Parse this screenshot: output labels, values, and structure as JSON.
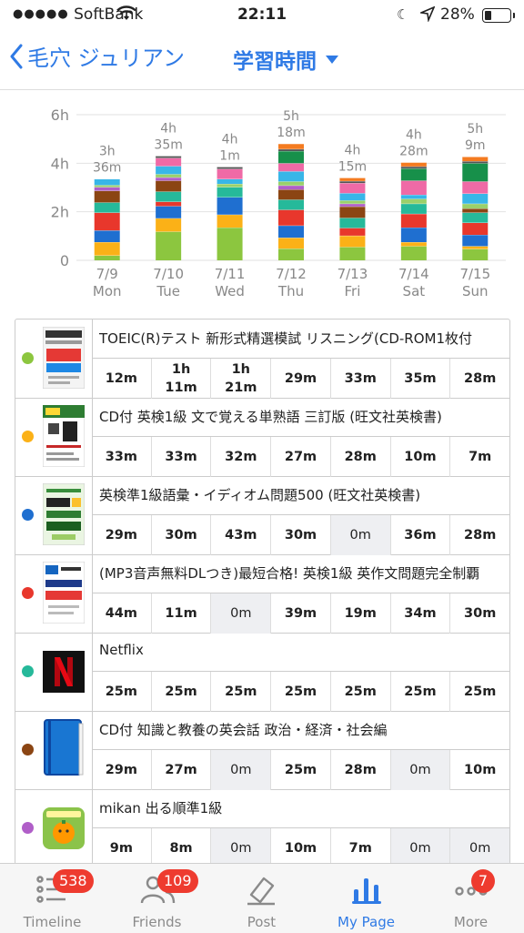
{
  "status_bar": {
    "carrier": "SoftBank",
    "time": "22:11",
    "battery": "28%"
  },
  "nav": {
    "back_label": "毛穴 ジュリアン",
    "title": "学習時間"
  },
  "chart_data": {
    "type": "bar",
    "stacked": true,
    "ylim": [
      0,
      6
    ],
    "yticks": [
      "0",
      "2h",
      "4h",
      "6h"
    ],
    "grid": true,
    "categories": [
      {
        "date": "7/9",
        "day": "Mon",
        "total_h": "3h",
        "total_m": "36m"
      },
      {
        "date": "7/10",
        "day": "Tue",
        "total_h": "4h",
        "total_m": "35m"
      },
      {
        "date": "7/11",
        "day": "Wed",
        "total_h": "4h",
        "total_m": "1m"
      },
      {
        "date": "7/12",
        "day": "Thu",
        "total_h": "5h",
        "total_m": "18m"
      },
      {
        "date": "7/13",
        "day": "Fri",
        "total_h": "4h",
        "total_m": "15m"
      },
      {
        "date": "7/14",
        "day": "Sat",
        "total_h": "4h",
        "total_m": "28m"
      },
      {
        "date": "7/15",
        "day": "Sun",
        "total_h": "5h",
        "total_m": "9m"
      }
    ],
    "series": [
      {
        "color": "#8cc63f",
        "values_min": [
          12,
          71,
          81,
          29,
          33,
          35,
          28
        ]
      },
      {
        "color": "#fbb117",
        "values_min": [
          33,
          33,
          32,
          27,
          28,
          10,
          7
        ]
      },
      {
        "color": "#1f6fd0",
        "values_min": [
          29,
          30,
          43,
          30,
          0,
          36,
          28
        ]
      },
      {
        "color": "#e8372c",
        "values_min": [
          44,
          11,
          0,
          39,
          19,
          34,
          30
        ]
      },
      {
        "color": "#26b99a",
        "values_min": [
          25,
          25,
          25,
          25,
          25,
          25,
          25
        ]
      },
      {
        "color": "#8b4513",
        "values_min": [
          29,
          27,
          0,
          25,
          28,
          0,
          10
        ]
      },
      {
        "color": "#b05ec8",
        "values_min": [
          9,
          8,
          0,
          10,
          7,
          0,
          0
        ]
      },
      {
        "color": "#9ad06b",
        "values_min": [
          5,
          8,
          8,
          10,
          8,
          12,
          12
        ]
      },
      {
        "color": "#38b6e8",
        "values_min": [
          15,
          20,
          12,
          25,
          18,
          10,
          25
        ]
      },
      {
        "color": "#ef6aa6",
        "values_min": [
          0,
          20,
          25,
          20,
          25,
          35,
          30
        ]
      },
      {
        "color": "#17904a",
        "values_min": [
          0,
          0,
          0,
          30,
          0,
          30,
          45
        ]
      },
      {
        "color": "#555555",
        "values_min": [
          0,
          5,
          5,
          5,
          5,
          5,
          5
        ]
      },
      {
        "color": "#f47b20",
        "values_min": [
          0,
          0,
          0,
          13,
          8,
          10,
          11
        ]
      }
    ]
  },
  "table": {
    "rows": [
      {
        "title": "TOEIC(R)テスト 新形式精選模試 リスニング(CD-ROM1枚付",
        "color": "#8cc63f",
        "thumb_icon": "book-cover-toeic-icon",
        "cells": [
          "12m",
          "1h\n11m",
          "1h\n21m",
          "29m",
          "33m",
          "35m",
          "28m"
        ]
      },
      {
        "title": "CD付 英検1級 文で覚える単熟語 三訂版 (旺文社英検書)",
        "color": "#fbb117",
        "thumb_icon": "book-cover-eiken-tango-icon",
        "cells": [
          "33m",
          "33m",
          "32m",
          "27m",
          "28m",
          "10m",
          "7m"
        ]
      },
      {
        "title": "英検準1級語彙・イディオム問題500 (旺文社英検書)",
        "color": "#1f6fd0",
        "thumb_icon": "book-cover-idiom-icon",
        "cells": [
          "29m",
          "30m",
          "43m",
          "30m",
          "0m",
          "36m",
          "28m"
        ]
      },
      {
        "title": "(MP3音声無料DLつき)最短合格! 英検1級 英作文問題完全制覇",
        "color": "#e8372c",
        "thumb_icon": "book-cover-eisakubun-icon",
        "cells": [
          "44m",
          "11m",
          "0m",
          "39m",
          "19m",
          "34m",
          "30m"
        ]
      },
      {
        "title": "Netflix",
        "color": "#26b99a",
        "thumb_icon": "netflix-logo-icon",
        "cells": [
          "25m",
          "25m",
          "25m",
          "25m",
          "25m",
          "25m",
          "25m"
        ]
      },
      {
        "title": "CD付 知識と教養の英会話 政治・経済・社会編",
        "color": "#8b4513",
        "thumb_icon": "blue-book-icon",
        "cells": [
          "29m",
          "27m",
          "0m",
          "25m",
          "28m",
          "0m",
          "10m"
        ]
      },
      {
        "title": "mikan 出る順準1級",
        "color": "#b05ec8",
        "thumb_icon": "mikan-app-icon",
        "cells": [
          "9m",
          "8m",
          "0m",
          "10m",
          "7m",
          "0m",
          "0m"
        ]
      }
    ]
  },
  "tabbar": {
    "tabs": [
      {
        "label": "Timeline",
        "badge": "538",
        "icon": "timeline-list-icon"
      },
      {
        "label": "Friends",
        "badge": "109",
        "icon": "friends-icon"
      },
      {
        "label": "Post",
        "badge": "",
        "icon": "post-pencil-icon"
      },
      {
        "label": "My Page",
        "badge": "",
        "icon": "my-page-bar-chart-icon"
      },
      {
        "label": "More",
        "badge": "7",
        "icon": "more-dots-icon"
      }
    ]
  },
  "colors": {
    "accent": "#2f7ae5",
    "badge": "#ee3b2f",
    "zero_cell_bg": "#eeeff2"
  }
}
